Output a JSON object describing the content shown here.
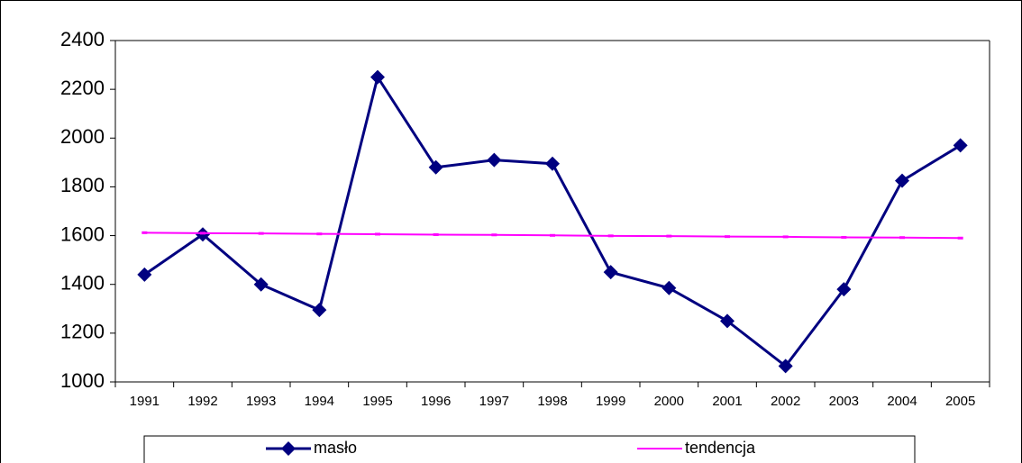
{
  "chart_data": {
    "type": "line",
    "categories": [
      "1991",
      "1992",
      "1993",
      "1994",
      "1995",
      "1996",
      "1997",
      "1998",
      "1999",
      "2000",
      "2001",
      "2002",
      "2003",
      "2004",
      "2005"
    ],
    "series": [
      {
        "name": "masło",
        "color": "#000080",
        "marker": "diamond",
        "values": [
          1440,
          1605,
          1400,
          1295,
          2250,
          1880,
          1910,
          1895,
          1450,
          1385,
          1250,
          1065,
          1380,
          1825,
          1970
        ]
      },
      {
        "name": "tendencja",
        "color": "#ff00ff",
        "marker": "dash",
        "values": [
          1612,
          1610,
          1609,
          1607,
          1606,
          1604,
          1603,
          1601,
          1599,
          1598,
          1596,
          1595,
          1593,
          1592,
          1590
        ]
      }
    ],
    "ylim": [
      1000,
      2400
    ],
    "yticks": [
      1000,
      1200,
      1400,
      1600,
      1800,
      2000,
      2200,
      2400
    ],
    "legend": "bottom"
  }
}
